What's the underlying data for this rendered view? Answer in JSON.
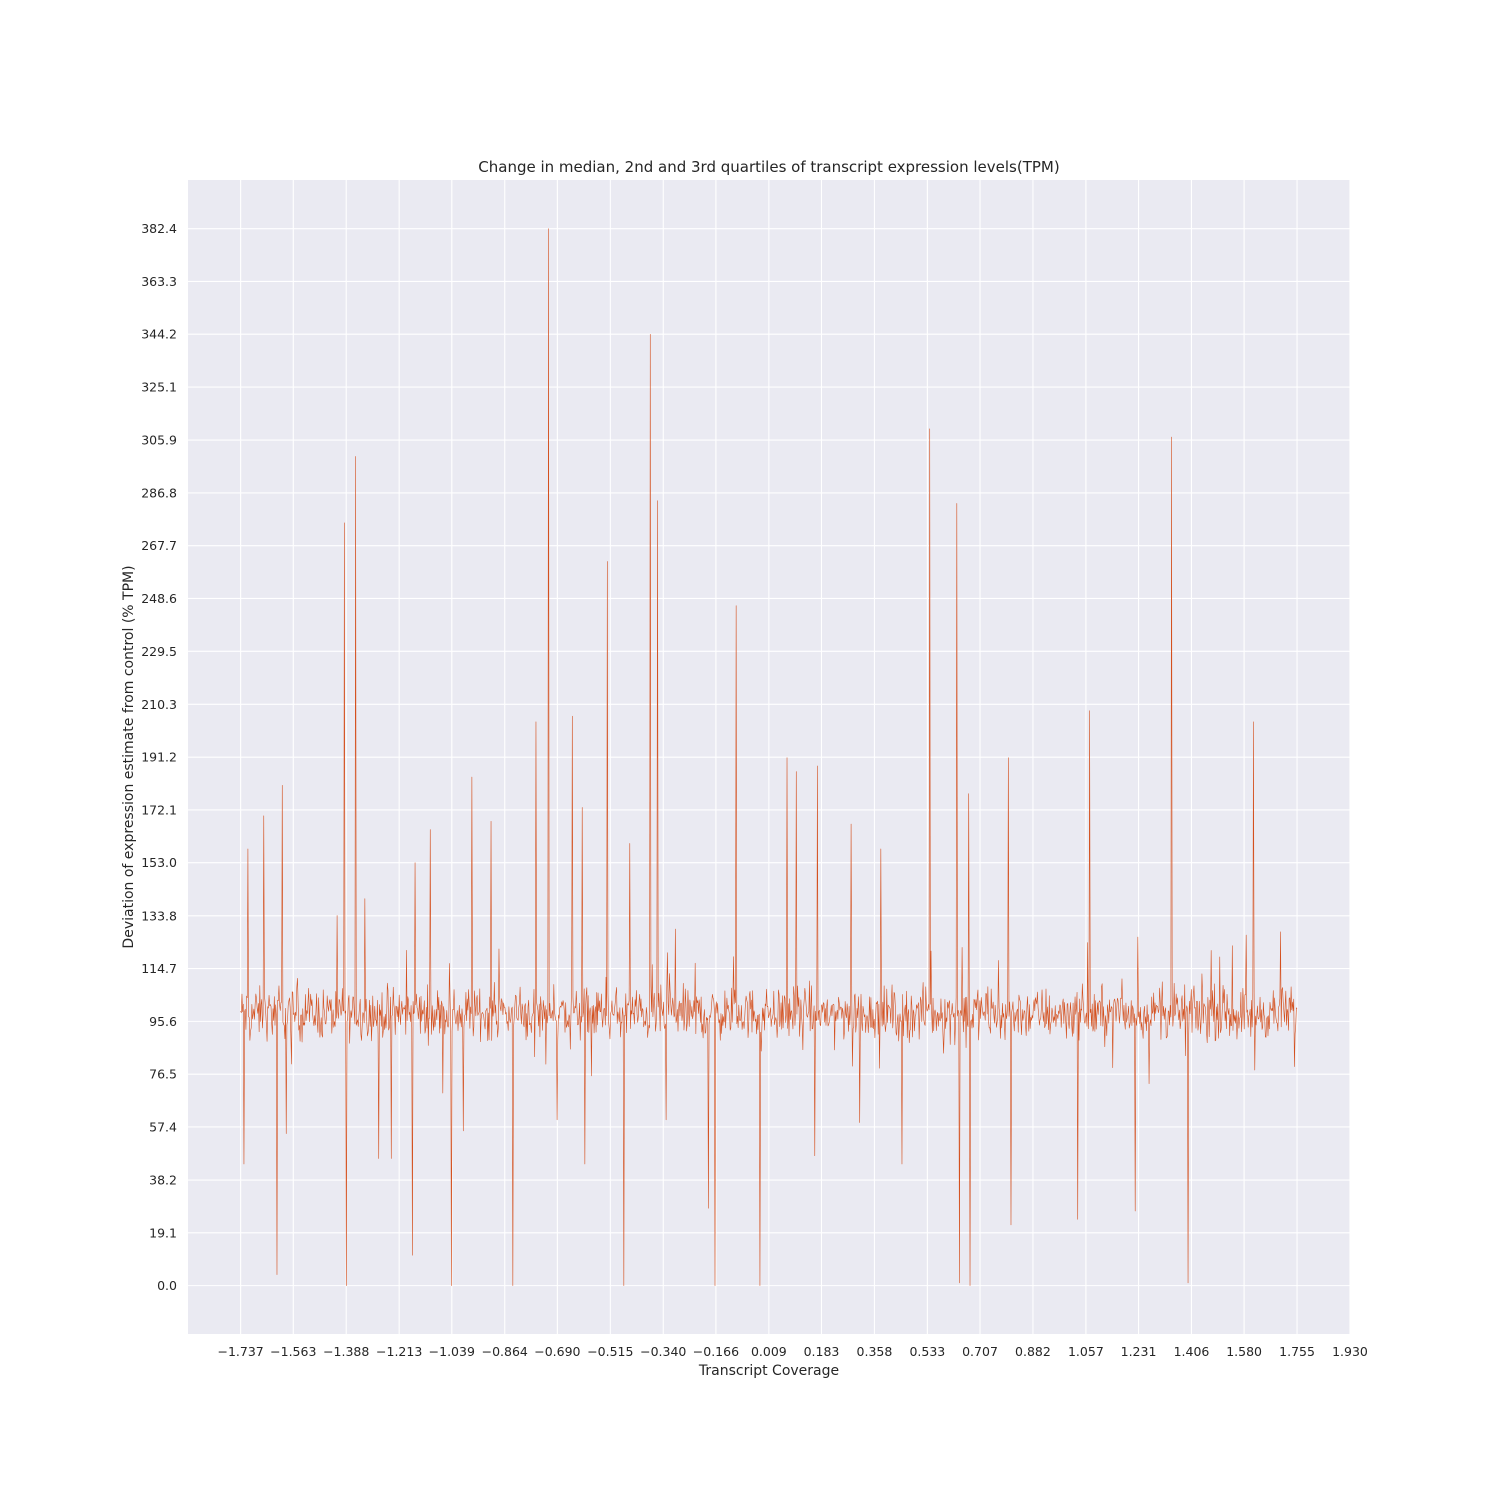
{
  "chart_data": {
    "type": "line",
    "title": "Change in median, 2nd and 3rd quartiles of transcript expression levels(TPM)",
    "xlabel": "Transcript Coverage",
    "ylabel": "Deviation of expression estimate from control (% TPM)",
    "xlim": [
      -1.911,
      1.93
    ],
    "ylim": [
      -17.5,
      400.0
    ],
    "x_ticks": [
      "−1.737",
      "−1.563",
      "−1.388",
      "−1.213",
      "−1.039",
      "−0.864",
      "−0.690",
      "−0.515",
      "−0.340",
      "−0.166",
      "0.009",
      "0.183",
      "0.358",
      "0.533",
      "0.707",
      "0.882",
      "1.057",
      "1.231",
      "1.406",
      "1.580",
      "1.755",
      "1.930"
    ],
    "y_ticks": [
      "0.0",
      "19.1",
      "38.2",
      "57.4",
      "76.5",
      "95.6",
      "114.7",
      "133.8",
      "153.0",
      "172.1",
      "191.2",
      "210.3",
      "229.5",
      "248.6",
      "267.7",
      "286.8",
      "305.9",
      "325.1",
      "344.2",
      "363.3",
      "382.4"
    ],
    "grid": true,
    "series": [
      {
        "color": "#d4501e",
        "baseline": 98.5,
        "x_range": [
          -1.737,
          1.755
        ],
        "n_points": 1600,
        "peaks": [
          {
            "x": -1.727,
            "y": 44
          },
          {
            "x": -1.714,
            "y": 158
          },
          {
            "x": -1.66,
            "y": 170
          },
          {
            "x": -1.617,
            "y": 4
          },
          {
            "x": -1.6,
            "y": 181
          },
          {
            "x": -1.587,
            "y": 55
          },
          {
            "x": -1.395,
            "y": 276
          },
          {
            "x": -1.388,
            "y": 0
          },
          {
            "x": -1.358,
            "y": 300
          },
          {
            "x": -1.326,
            "y": 140
          },
          {
            "x": -1.28,
            "y": 46
          },
          {
            "x": -1.24,
            "y": 46
          },
          {
            "x": -1.17,
            "y": 11
          },
          {
            "x": -1.16,
            "y": 153
          },
          {
            "x": -1.11,
            "y": 165
          },
          {
            "x": -1.04,
            "y": 0
          },
          {
            "x": -1.0,
            "y": 56
          },
          {
            "x": -0.973,
            "y": 184
          },
          {
            "x": -0.91,
            "y": 168
          },
          {
            "x": -0.837,
            "y": 0
          },
          {
            "x": -0.76,
            "y": 204
          },
          {
            "x": -0.72,
            "y": 382.4
          },
          {
            "x": -0.69,
            "y": 60
          },
          {
            "x": -0.64,
            "y": 206
          },
          {
            "x": -0.608,
            "y": 173
          },
          {
            "x": -0.6,
            "y": 44
          },
          {
            "x": -0.525,
            "y": 262
          },
          {
            "x": -0.47,
            "y": 0
          },
          {
            "x": -0.45,
            "y": 160
          },
          {
            "x": -0.383,
            "y": 344.2
          },
          {
            "x": -0.36,
            "y": 284
          },
          {
            "x": -0.33,
            "y": 60
          },
          {
            "x": -0.3,
            "y": 129
          },
          {
            "x": -0.19,
            "y": 28
          },
          {
            "x": -0.17,
            "y": 0
          },
          {
            "x": -0.1,
            "y": 246
          },
          {
            "x": -0.02,
            "y": 0
          },
          {
            "x": 0.07,
            "y": 191
          },
          {
            "x": 0.1,
            "y": 186
          },
          {
            "x": 0.16,
            "y": 47
          },
          {
            "x": 0.17,
            "y": 188
          },
          {
            "x": 0.28,
            "y": 167
          },
          {
            "x": 0.31,
            "y": 59
          },
          {
            "x": 0.38,
            "y": 158
          },
          {
            "x": 0.45,
            "y": 44
          },
          {
            "x": 0.54,
            "y": 310
          },
          {
            "x": 0.63,
            "y": 283
          },
          {
            "x": 0.64,
            "y": 1
          },
          {
            "x": 0.67,
            "y": 178
          },
          {
            "x": 0.674,
            "y": 0
          },
          {
            "x": 0.8,
            "y": 191
          },
          {
            "x": 0.81,
            "y": 22
          },
          {
            "x": 1.03,
            "y": 24
          },
          {
            "x": 1.07,
            "y": 208
          },
          {
            "x": 1.22,
            "y": 27
          },
          {
            "x": 1.34,
            "y": 307
          },
          {
            "x": 1.395,
            "y": 1
          },
          {
            "x": 1.61,
            "y": 204
          },
          {
            "x": 1.615,
            "y": 78
          },
          {
            "x": 1.7,
            "y": 128
          }
        ]
      }
    ]
  }
}
